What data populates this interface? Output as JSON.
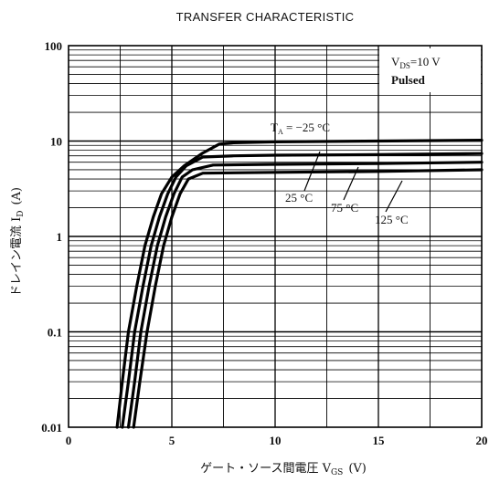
{
  "chart_data": {
    "type": "line",
    "title": "TRANSFER CHARACTERISTIC",
    "xlabel": "ゲート・ソース間電圧 V",
    "xlabel_sub": "GS",
    "xlabel_unit": "(V)",
    "ylabel": "ドレイン電流 I",
    "ylabel_sub": "D",
    "ylabel_unit": "(A)",
    "xlim": [
      0,
      20
    ],
    "ylim": [
      0.01,
      100
    ],
    "yscale": "log",
    "grid": true,
    "x_ticks": [
      "0",
      "5",
      "10",
      "15",
      "20"
    ],
    "y_ticks": [
      "0.01",
      "0.1",
      "1",
      "10",
      "100"
    ],
    "conditions": {
      "vds_prefix": "V",
      "vds_sub": "DS",
      "vds_value": "=10 V",
      "mode": "Pulsed"
    },
    "series": [
      {
        "name": "-25 °C",
        "label_text": "T",
        "label_sub": "A",
        "label_rest": " = −25 °C",
        "points": [
          [
            2.35,
            0.01
          ],
          [
            2.6,
            0.03
          ],
          [
            2.9,
            0.1
          ],
          [
            3.3,
            0.3
          ],
          [
            3.7,
            0.8
          ],
          [
            4.1,
            1.6
          ],
          [
            4.5,
            2.8
          ],
          [
            5.0,
            4.2
          ],
          [
            5.6,
            5.5
          ],
          [
            6.5,
            7.5
          ],
          [
            7.3,
            9.3
          ],
          [
            8.0,
            9.6
          ],
          [
            10,
            9.8
          ],
          [
            15,
            10.0
          ],
          [
            20,
            10.2
          ]
        ]
      },
      {
        "name": "25 °C",
        "label_text": "25 °C",
        "points": [
          [
            2.6,
            0.01
          ],
          [
            2.9,
            0.03
          ],
          [
            3.2,
            0.1
          ],
          [
            3.6,
            0.3
          ],
          [
            4.0,
            0.8
          ],
          [
            4.4,
            1.6
          ],
          [
            4.8,
            2.8
          ],
          [
            5.2,
            4.2
          ],
          [
            5.7,
            5.5
          ],
          [
            6.5,
            6.8
          ],
          [
            8.0,
            7.0
          ],
          [
            10,
            7.1
          ],
          [
            15,
            7.2
          ],
          [
            20,
            7.4
          ]
        ]
      },
      {
        "name": "75 °C",
        "label_text": "75 °C",
        "points": [
          [
            2.9,
            0.01
          ],
          [
            3.2,
            0.03
          ],
          [
            3.5,
            0.1
          ],
          [
            3.9,
            0.3
          ],
          [
            4.3,
            0.8
          ],
          [
            4.7,
            1.6
          ],
          [
            5.1,
            2.8
          ],
          [
            5.5,
            4.2
          ],
          [
            6.0,
            5.0
          ],
          [
            7.0,
            5.6
          ],
          [
            10,
            5.7
          ],
          [
            15,
            5.8
          ],
          [
            20,
            6.0
          ]
        ]
      },
      {
        "name": "125 °C",
        "label_text": "125 °C",
        "points": [
          [
            3.15,
            0.01
          ],
          [
            3.45,
            0.03
          ],
          [
            3.8,
            0.1
          ],
          [
            4.2,
            0.3
          ],
          [
            4.6,
            0.8
          ],
          [
            5.0,
            1.6
          ],
          [
            5.4,
            2.8
          ],
          [
            5.8,
            4.0
          ],
          [
            6.5,
            4.6
          ],
          [
            10,
            4.7
          ],
          [
            15,
            4.8
          ],
          [
            20,
            5.0
          ]
        ]
      }
    ]
  }
}
